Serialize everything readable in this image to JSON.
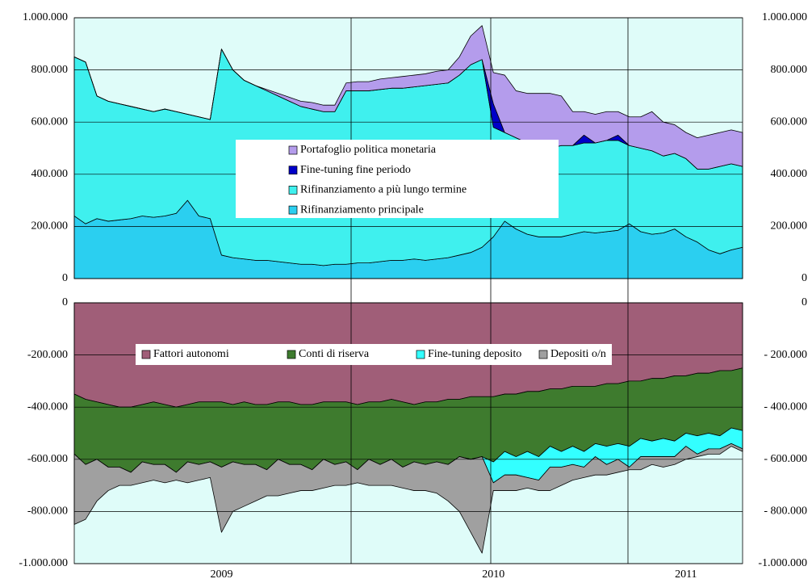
{
  "chart_data": [
    {
      "type": "area",
      "stacked": true,
      "ylim": [
        0,
        1000000
      ],
      "yticks": [
        0,
        {
          "value": 200000,
          "label": "200.000"
        },
        {
          "value": 400000,
          "label": "400.000"
        },
        {
          "value": 600000,
          "label": "600.000"
        },
        {
          "value": 800000,
          "label": "800.000"
        },
        {
          "value": 1000000,
          "label": "1.000.000"
        }
      ],
      "grid": true,
      "series": [
        {
          "name": "Portafoglio politica monetaria",
          "color": "#b49cec",
          "values": [
            0,
            0,
            0,
            0,
            0,
            0,
            0,
            0,
            0,
            0,
            0,
            0,
            0,
            0,
            0,
            0,
            0,
            5000,
            10000,
            15000,
            20000,
            25000,
            25000,
            25000,
            30000,
            35000,
            35000,
            40000,
            40000,
            45000,
            45000,
            45000,
            50000,
            50000,
            70000,
            110000,
            130000,
            120000,
            220000,
            180000,
            190000,
            210000,
            210000,
            190000,
            130000,
            90000,
            110000,
            110000,
            90000,
            110000,
            120000,
            150000,
            130000,
            110000,
            100000,
            120000,
            130000,
            130000,
            130000,
            130000
          ]
        },
        {
          "name": "Fine-tuning fine periodo",
          "color": "#0000c8",
          "values": [
            0,
            0,
            0,
            0,
            0,
            0,
            0,
            0,
            0,
            0,
            0,
            0,
            0,
            0,
            0,
            0,
            0,
            0,
            0,
            0,
            0,
            0,
            0,
            0,
            0,
            0,
            0,
            0,
            0,
            0,
            0,
            0,
            0,
            0,
            0,
            0,
            0,
            90000,
            0,
            0,
            0,
            0,
            0,
            0,
            0,
            30000,
            0,
            0,
            20000,
            0,
            0,
            0,
            0,
            0,
            0,
            0,
            0,
            0,
            0,
            0
          ]
        },
        {
          "name": "Rifinanziamento a più lungo termine",
          "color": "#3ff0ee",
          "values": [
            610000,
            620000,
            470000,
            460000,
            445000,
            430000,
            410000,
            405000,
            410000,
            390000,
            330000,
            380000,
            380000,
            790000,
            720000,
            685000,
            670000,
            650000,
            635000,
            620000,
            605000,
            595000,
            590000,
            585000,
            665000,
            660000,
            660000,
            660000,
            660000,
            660000,
            660000,
            670000,
            670000,
            670000,
            690000,
            720000,
            720000,
            420000,
            340000,
            350000,
            350000,
            340000,
            340000,
            350000,
            340000,
            340000,
            345000,
            350000,
            345000,
            300000,
            320000,
            320000,
            295000,
            290000,
            300000,
            280000,
            310000,
            335000,
            330000,
            310000
          ]
        },
        {
          "name": "Rifinanziamento principale",
          "color": "#2bcff0",
          "values": [
            240000,
            210000,
            230000,
            220000,
            225000,
            230000,
            240000,
            235000,
            240000,
            250000,
            300000,
            240000,
            230000,
            90000,
            80000,
            75000,
            70000,
            70000,
            65000,
            60000,
            55000,
            55000,
            50000,
            55000,
            55000,
            60000,
            60000,
            65000,
            70000,
            70000,
            75000,
            70000,
            75000,
            80000,
            90000,
            100000,
            120000,
            160000,
            220000,
            190000,
            170000,
            160000,
            160000,
            160000,
            170000,
            180000,
            175000,
            180000,
            185000,
            210000,
            180000,
            170000,
            175000,
            190000,
            160000,
            140000,
            110000,
            95000,
            110000,
            120000
          ]
        }
      ]
    },
    {
      "type": "area",
      "stacked": true,
      "categories": [
        null,
        null,
        null,
        null,
        null,
        null,
        null,
        null,
        null,
        null,
        null,
        null,
        null,
        "2009",
        null,
        null,
        null,
        null,
        null,
        null,
        null,
        null,
        null,
        null,
        null,
        null,
        null,
        null,
        null,
        null,
        null,
        null,
        null,
        null,
        null,
        null,
        null,
        "2010",
        null,
        null,
        null,
        null,
        null,
        null,
        null,
        null,
        null,
        null,
        null,
        null,
        null,
        null,
        null,
        null,
        "2011",
        null,
        null,
        null,
        null,
        null
      ],
      "ylim": [
        -1000000,
        0
      ],
      "yticks": [
        0,
        {
          "value": -200000,
          "label": "-200.000"
        },
        {
          "value": -400000,
          "label": "-400.000"
        },
        {
          "value": -600000,
          "label": "-600.000"
        },
        {
          "value": -800000,
          "label": "-800.000"
        },
        {
          "value": -1000000,
          "label": "-1.000.000"
        }
      ],
      "y2lim": [
        -1000000,
        0
      ],
      "y2ticks": [
        0,
        {
          "value": -200000,
          "label": "- 200.000"
        },
        {
          "value": -400000,
          "label": "- 400.000"
        },
        {
          "value": -600000,
          "label": "- 600.000"
        },
        {
          "value": -800000,
          "label": "- 800.000"
        },
        {
          "value": -1000000,
          "label": "-1.000.000"
        }
      ],
      "grid": true,
      "series": [
        {
          "name": "Fattori autonomi",
          "color": "#a05e78",
          "values": [
            -350000,
            -370000,
            -380000,
            -390000,
            -400000,
            -400000,
            -390000,
            -380000,
            -390000,
            -400000,
            -390000,
            -380000,
            -380000,
            -380000,
            -390000,
            -380000,
            -390000,
            -390000,
            -380000,
            -380000,
            -390000,
            -390000,
            -380000,
            -380000,
            -380000,
            -390000,
            -380000,
            -380000,
            -370000,
            -380000,
            -390000,
            -380000,
            -380000,
            -370000,
            -370000,
            -360000,
            -360000,
            -360000,
            -350000,
            -350000,
            -340000,
            -340000,
            -330000,
            -330000,
            -320000,
            -320000,
            -320000,
            -310000,
            -310000,
            -300000,
            -300000,
            -290000,
            -290000,
            -280000,
            -280000,
            -270000,
            -270000,
            -260000,
            -260000,
            -250000
          ]
        },
        {
          "name": "Conti di riserva",
          "color": "#3e7b2e",
          "values": [
            -230000,
            -250000,
            -220000,
            -240000,
            -230000,
            -250000,
            -220000,
            -240000,
            -230000,
            -250000,
            -220000,
            -240000,
            -230000,
            -250000,
            -220000,
            -240000,
            -230000,
            -250000,
            -220000,
            -240000,
            -230000,
            -250000,
            -220000,
            -240000,
            -230000,
            -250000,
            -220000,
            -240000,
            -230000,
            -250000,
            -220000,
            -240000,
            -230000,
            -250000,
            -220000,
            -240000,
            -230000,
            -250000,
            -220000,
            -240000,
            -230000,
            -250000,
            -220000,
            -240000,
            -230000,
            -250000,
            -220000,
            -240000,
            -230000,
            -250000,
            -220000,
            -240000,
            -230000,
            -250000,
            -220000,
            -240000,
            -230000,
            -250000,
            -220000,
            -240000
          ]
        },
        {
          "name": "Fine-tuning deposito",
          "color": "#33ffff",
          "values": [
            0,
            0,
            0,
            0,
            0,
            0,
            0,
            0,
            0,
            0,
            0,
            0,
            0,
            0,
            0,
            0,
            0,
            0,
            0,
            0,
            0,
            0,
            0,
            0,
            0,
            0,
            0,
            0,
            0,
            0,
            0,
            0,
            0,
            0,
            0,
            0,
            0,
            -80000,
            -90000,
            -70000,
            -100000,
            -90000,
            -80000,
            -60000,
            -70000,
            -60000,
            -50000,
            -70000,
            -60000,
            -80000,
            -70000,
            -60000,
            -70000,
            -60000,
            -50000,
            -70000,
            -60000,
            -50000,
            -60000,
            -70000
          ]
        },
        {
          "name": "Depositi o/n",
          "color": "#a0a0a0",
          "values": [
            -270000,
            -210000,
            -160000,
            -90000,
            -70000,
            -50000,
            -80000,
            -60000,
            -70000,
            -30000,
            -80000,
            -60000,
            -60000,
            -250000,
            -190000,
            -160000,
            -140000,
            -100000,
            -140000,
            -110000,
            -100000,
            -80000,
            -110000,
            -80000,
            -90000,
            -50000,
            -100000,
            -80000,
            -100000,
            -80000,
            -110000,
            -100000,
            -120000,
            -140000,
            -210000,
            -280000,
            -370000,
            -30000,
            -60000,
            -60000,
            -40000,
            -40000,
            -90000,
            -70000,
            -60000,
            -40000,
            -70000,
            -40000,
            -50000,
            -10000,
            -50000,
            -30000,
            -40000,
            -30000,
            -50000,
            -10000,
            -20000,
            -20000,
            -10000,
            -10000
          ]
        }
      ]
    }
  ]
}
